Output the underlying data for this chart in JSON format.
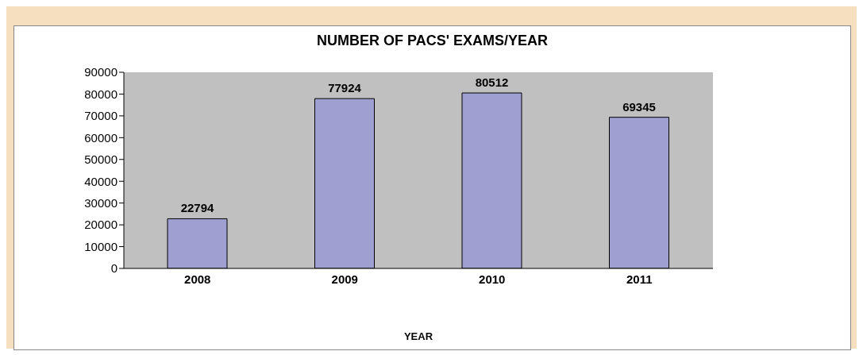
{
  "chart_data": {
    "type": "bar",
    "title": "NUMBER OF PACS' EXAMS/YEAR",
    "xlabel": "YEAR",
    "categories": [
      "2008",
      "2009",
      "2010",
      "2011"
    ],
    "values": [
      22794,
      77924,
      80512,
      69345
    ],
    "color": "#9f9fd2",
    "ylim": [
      0,
      90000
    ],
    "yticks": [
      0,
      10000,
      20000,
      30000,
      40000,
      50000,
      60000,
      70000,
      80000,
      90000
    ],
    "grid": false,
    "data_labels": true,
    "legend": false
  }
}
